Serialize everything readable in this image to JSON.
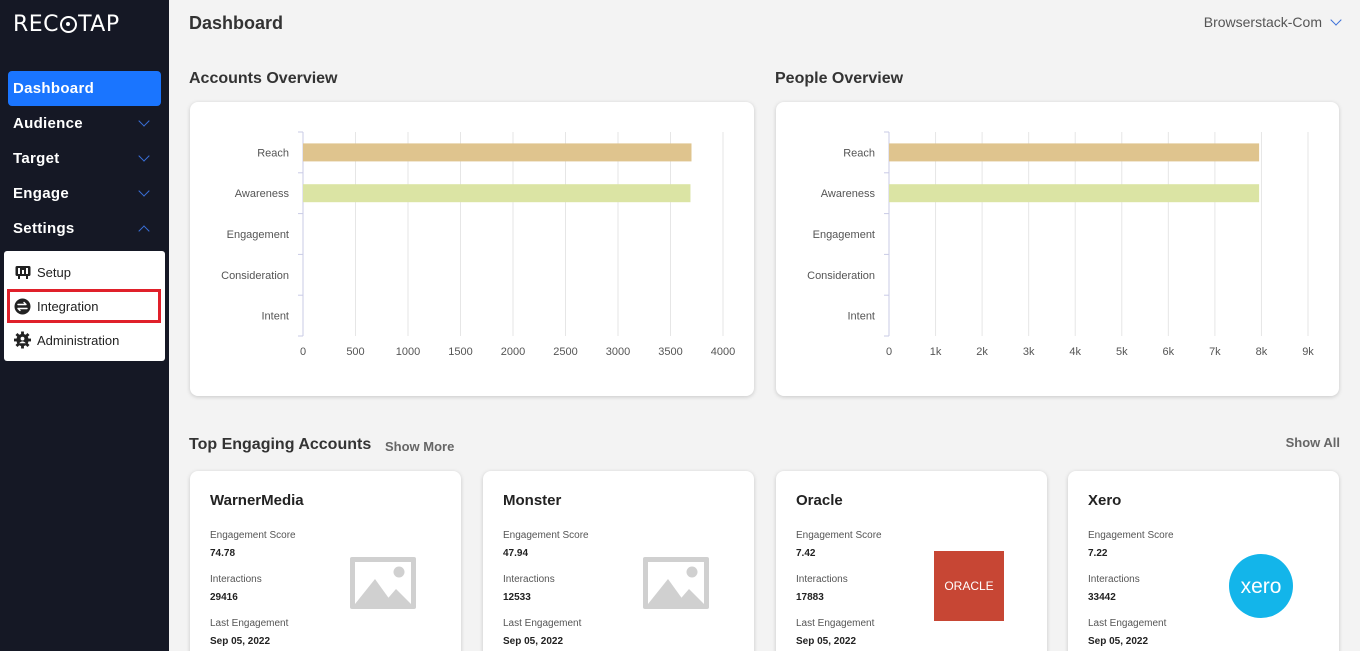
{
  "brand": {
    "logo_left": "REC",
    "logo_right": "TAP"
  },
  "sidebar": {
    "items": [
      {
        "label": "Dashboard",
        "active": true
      },
      {
        "label": "Audience",
        "chevron": "down"
      },
      {
        "label": "Target",
        "chevron": "down"
      },
      {
        "label": "Engage",
        "chevron": "down"
      },
      {
        "label": "Settings",
        "chevron": "up"
      }
    ],
    "submenu": [
      {
        "label": "Setup",
        "icon": "setup-board-icon"
      },
      {
        "label": "Integration",
        "icon": "integration-icon",
        "highlighted": true
      },
      {
        "label": "Administration",
        "icon": "gear-icon"
      }
    ]
  },
  "header": {
    "title": "Dashboard",
    "org": "Browserstack-Com"
  },
  "accounts_overview": {
    "title": "Accounts Overview"
  },
  "people_overview": {
    "title": "People Overview"
  },
  "chart_data": [
    {
      "type": "bar",
      "orientation": "horizontal",
      "categories": [
        "Reach",
        "Awareness",
        "Engagement",
        "Consideration",
        "Intent"
      ],
      "values": [
        3700,
        3690,
        0,
        0,
        0
      ],
      "colors": [
        "#dfc48e",
        "#dbe4a4"
      ],
      "xticks": [
        "0",
        "500",
        "1000",
        "1500",
        "2000",
        "2500",
        "3000",
        "3500",
        "4000"
      ],
      "xlim": [
        0,
        4000
      ],
      "grid": true
    },
    {
      "type": "bar",
      "orientation": "horizontal",
      "categories": [
        "Reach",
        "Awareness",
        "Engagement",
        "Consideration",
        "Intent"
      ],
      "values": [
        7950,
        7950,
        0,
        0,
        0
      ],
      "colors": [
        "#dfc48e",
        "#dbe4a4"
      ],
      "xticks": [
        "0",
        "1k",
        "2k",
        "3k",
        "4k",
        "5k",
        "6k",
        "7k",
        "8k",
        "9k"
      ],
      "xlim": [
        0,
        9000
      ],
      "grid": true
    }
  ],
  "top_accounts": {
    "title": "Top Engaging Accounts",
    "show_more": "Show More",
    "show_all": "Show All",
    "labels": {
      "score": "Engagement Score",
      "interactions": "Interactions",
      "last": "Last Engagement"
    },
    "accounts": [
      {
        "name": "WarnerMedia",
        "score": "74.78",
        "interactions": "29416",
        "last": "Sep 05, 2022",
        "logo": "placeholder-image-icon"
      },
      {
        "name": "Monster",
        "score": "47.94",
        "interactions": "12533",
        "last": "Sep 05, 2022",
        "logo": "placeholder-image-icon"
      },
      {
        "name": "Oracle",
        "score": "7.42",
        "interactions": "17883",
        "last": "Sep 05, 2022",
        "logo": "oracle-logo",
        "logo_text": "ORACLE",
        "logo_color": "#c74634"
      },
      {
        "name": "Xero",
        "score": "7.22",
        "interactions": "33442",
        "last": "Sep 05, 2022",
        "logo": "xero-logo",
        "logo_text": "xero",
        "logo_color": "#13b5ea"
      }
    ]
  }
}
